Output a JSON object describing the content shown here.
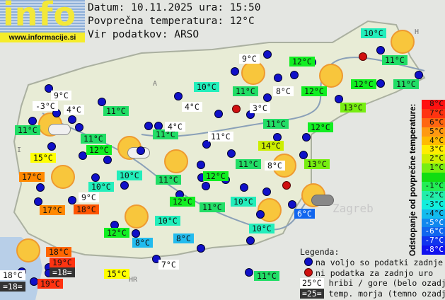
{
  "logo": {
    "word": "info",
    "url": "www.informacije.si"
  },
  "header": {
    "date_line": "Datum: 10.11.2025 ura: 15:50",
    "avg_line": "Povprečna temperatura: 12°C",
    "source_line": "Vir podatkov: ARSO"
  },
  "map_marks": {
    "country_codes": [
      "A",
      "I",
      "H",
      "HR"
    ],
    "city": "Zagreb"
  },
  "labels": [
    {
      "text": "9°C",
      "color": "#ffffff"
    },
    {
      "text": "-3°C",
      "color": "#ffffff"
    },
    {
      "text": "4°C",
      "color": "#ffffff"
    },
    {
      "text": "11°C",
      "color": "#22dd66"
    },
    {
      "text": "11°C",
      "color": "#22dd66"
    },
    {
      "text": "11°C",
      "color": "#22dd66"
    },
    {
      "text": "15°C",
      "color": "#ffff00"
    },
    {
      "text": "12°C",
      "color": "#11ee22"
    },
    {
      "text": "11°C",
      "color": "#22dd66"
    },
    {
      "text": "4°C",
      "color": "#ffffff"
    },
    {
      "text": "4°C",
      "color": "#ffffff"
    },
    {
      "text": "17°C",
      "color": "#ff8800"
    },
    {
      "text": "10°C",
      "color": "#22eebb"
    },
    {
      "text": "10°C",
      "color": "#22eebb"
    },
    {
      "text": "11°C",
      "color": "#22dd66"
    },
    {
      "text": "9°C",
      "color": "#ffffff"
    },
    {
      "text": "17°C",
      "color": "#ff8800"
    },
    {
      "text": "18°C",
      "color": "#ff5500"
    },
    {
      "text": "12°C",
      "color": "#11ee22"
    },
    {
      "text": "11°C",
      "color": "#22dd66"
    },
    {
      "text": "12°C",
      "color": "#11ee22"
    },
    {
      "text": "10°C",
      "color": "#22eebb"
    },
    {
      "text": "8°C",
      "color": "#22bbee"
    },
    {
      "text": "8°C",
      "color": "#22bbee"
    },
    {
      "text": "10°C",
      "color": "#22eebb"
    },
    {
      "text": "11°C",
      "color": "#22dd66"
    },
    {
      "text": "9°C",
      "color": "#ffffff"
    },
    {
      "text": "8°C",
      "color": "#ffffff"
    },
    {
      "text": "3°C",
      "color": "#ffffff"
    },
    {
      "text": "12°C",
      "color": "#11ee22"
    },
    {
      "text": "12°C",
      "color": "#11ee22"
    },
    {
      "text": "10°C",
      "color": "#22eebb"
    },
    {
      "text": "11°C",
      "color": "#22dd66"
    },
    {
      "text": "12°C",
      "color": "#11ee22"
    },
    {
      "text": "11°C",
      "color": "#22dd66"
    },
    {
      "text": "13°C",
      "color": "#77ee11"
    },
    {
      "text": "12°C",
      "color": "#11ee22"
    },
    {
      "text": "11°C",
      "color": "#22dd66"
    },
    {
      "text": "11°C",
      "color": "#ffffff"
    },
    {
      "text": "14°C",
      "color": "#ccee00"
    },
    {
      "text": "11°C",
      "color": "#22dd66"
    },
    {
      "text": "8°C",
      "color": "#ffffff"
    },
    {
      "text": "13°C",
      "color": "#77ee11"
    },
    {
      "text": "12°C",
      "color": "#11ee22"
    },
    {
      "text": "10°C",
      "color": "#22eebb"
    },
    {
      "text": "10°C",
      "color": "#22eebb"
    },
    {
      "text": "6°C",
      "color": "#1166ee"
    },
    {
      "text": "11°C",
      "color": "#22dd66"
    },
    {
      "text": "15°C",
      "color": "#ffff00"
    },
    {
      "text": "7°C",
      "color": "#ffffff"
    },
    {
      "text": "18°C",
      "color": "#ff6600"
    },
    {
      "text": "19°C",
      "color": "#ff3311"
    },
    {
      "text": "=18=",
      "color": "#333333"
    },
    {
      "text": "18°C",
      "color": "#ffffff"
    },
    {
      "text": "=18=",
      "color": "#333333"
    },
    {
      "text": "19°C",
      "color": "#ff3311"
    }
  ],
  "scale": {
    "title": "Odstopanje od povprečne temperature:",
    "items": [
      {
        "label": "8°C",
        "color": "#ff1111"
      },
      {
        "label": "7°C",
        "color": "#ff3311"
      },
      {
        "label": "6°C",
        "color": "#ff6611"
      },
      {
        "label": "5°C",
        "color": "#ff9911"
      },
      {
        "label": "4°C",
        "color": "#ffbb00"
      },
      {
        "label": "3°C",
        "color": "#ffee00"
      },
      {
        "label": "2°C",
        "color": "#ccee00"
      },
      {
        "label": "1°C",
        "color": "#77ee11"
      },
      {
        "label": "",
        "color": "#11dd11"
      },
      {
        "label": "-1°C",
        "color": "#22ee55"
      },
      {
        "label": "-2°C",
        "color": "#22eeaa"
      },
      {
        "label": "-3°C",
        "color": "#11eedd"
      },
      {
        "label": "-4°C",
        "color": "#11bbee"
      },
      {
        "label": "-5°C",
        "color": "#1188ee"
      },
      {
        "label": "-6°C",
        "color": "#1166ee"
      },
      {
        "label": "-7°C",
        "color": "#1133ee"
      },
      {
        "label": "-8°C",
        "color": "#1111ee"
      }
    ]
  },
  "legend": {
    "title": "Legenda:",
    "available": "na voljo so podatki zadnje ure",
    "missing": "ni podatka za zadnjo uro",
    "mountain_sample": "25°C",
    "mountain_text": "hribi / gore (belo ozadje)",
    "sea_sample": "=25=",
    "sea_text": "temp. morja (temno ozadje)"
  }
}
